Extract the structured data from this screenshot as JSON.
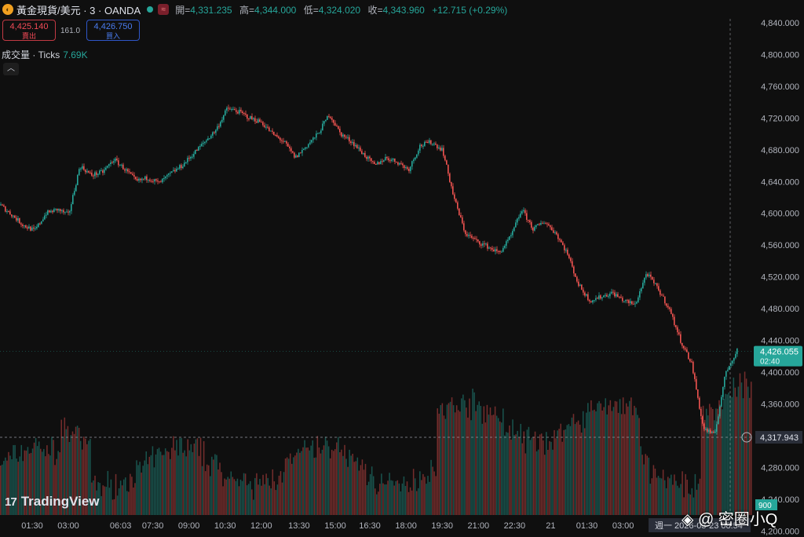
{
  "header": {
    "symbol": "黃金現貨/美元 · 3 · OANDA",
    "open_label": "開=",
    "open": "4,331.235",
    "high_label": "高=",
    "high": "4,344.000",
    "low_label": "低=",
    "low": "4,324.020",
    "close_label": "收=",
    "close": "4,343.960",
    "change": "+12.715 (+0.29%)",
    "icon": "gold-coin-icon"
  },
  "trade": {
    "sell_price": "4,425.140",
    "sell_label": "賣出",
    "buy_price": "4,426.750",
    "buy_label": "買入",
    "spread": "161.0"
  },
  "volume": {
    "label": "成交量 · Ticks",
    "value": "7.69K"
  },
  "brand": {
    "name": "TradingView",
    "mark": "17"
  },
  "watermark": "◈ @ 密圈小Q",
  "colors": {
    "up": "#26a69a",
    "down": "#ef5350",
    "background": "#0f0f0f",
    "price_tag": "#26a69a"
  },
  "chart_data": {
    "type": "candlestick",
    "ylim": [
      4180,
      4860
    ],
    "y_ticks": [
      "4,840.000",
      "4,800.000",
      "4,760.000",
      "4,720.000",
      "4,680.000",
      "4,640.000",
      "4,600.000",
      "4,560.000",
      "4,520.000",
      "4,480.000",
      "4,440.000",
      "4,400.000",
      "4,360.000",
      "4,280.000",
      "4,240.000",
      "4,200.000"
    ],
    "y_tick_values": [
      4840,
      4800,
      4760,
      4720,
      4680,
      4640,
      4600,
      4560,
      4520,
      4480,
      4440,
      4400,
      4360,
      4280,
      4240,
      4200
    ],
    "x_ticks": [
      "01:30",
      "03:00",
      "06:03",
      "07:30",
      "09:00",
      "10:30",
      "12:00",
      "13:30",
      "15:00",
      "16:30",
      "18:00",
      "19:30",
      "21:00",
      "22:30",
      "21",
      "01:30",
      "03:00"
    ],
    "x_tick_fracs": [
      0.04,
      0.085,
      0.15,
      0.19,
      0.235,
      0.28,
      0.325,
      0.372,
      0.417,
      0.46,
      0.505,
      0.55,
      0.595,
      0.64,
      0.685,
      0.73,
      0.775
    ],
    "cursor_date": "週一 2026-03-23",
    "cursor_time": "08:54",
    "price_path": [
      4610,
      4598,
      4585,
      4578,
      4600,
      4605,
      4598,
      4660,
      4648,
      4652,
      4668,
      4655,
      4640,
      4645,
      4638,
      4650,
      4660,
      4675,
      4690,
      4705,
      4732,
      4728,
      4720,
      4715,
      4700,
      4690,
      4670,
      4685,
      4700,
      4725,
      4700,
      4690,
      4675,
      4660,
      4670,
      4665,
      4655,
      4685,
      4690,
      4680,
      4620,
      4575,
      4565,
      4558,
      4550,
      4570,
      4605,
      4580,
      4590,
      4575,
      4550,
      4510,
      4490,
      4495,
      4500,
      4490,
      4485,
      4525,
      4505,
      4480,
      4440,
      4410,
      4330,
      4320,
      4400,
      4428
    ],
    "last_price": "4,426.055",
    "countdown": "02:40",
    "crosshair_price": "4,317.943",
    "crosshair_value": 4317.943,
    "last_value": 4426.055,
    "volume_tag": "900"
  }
}
